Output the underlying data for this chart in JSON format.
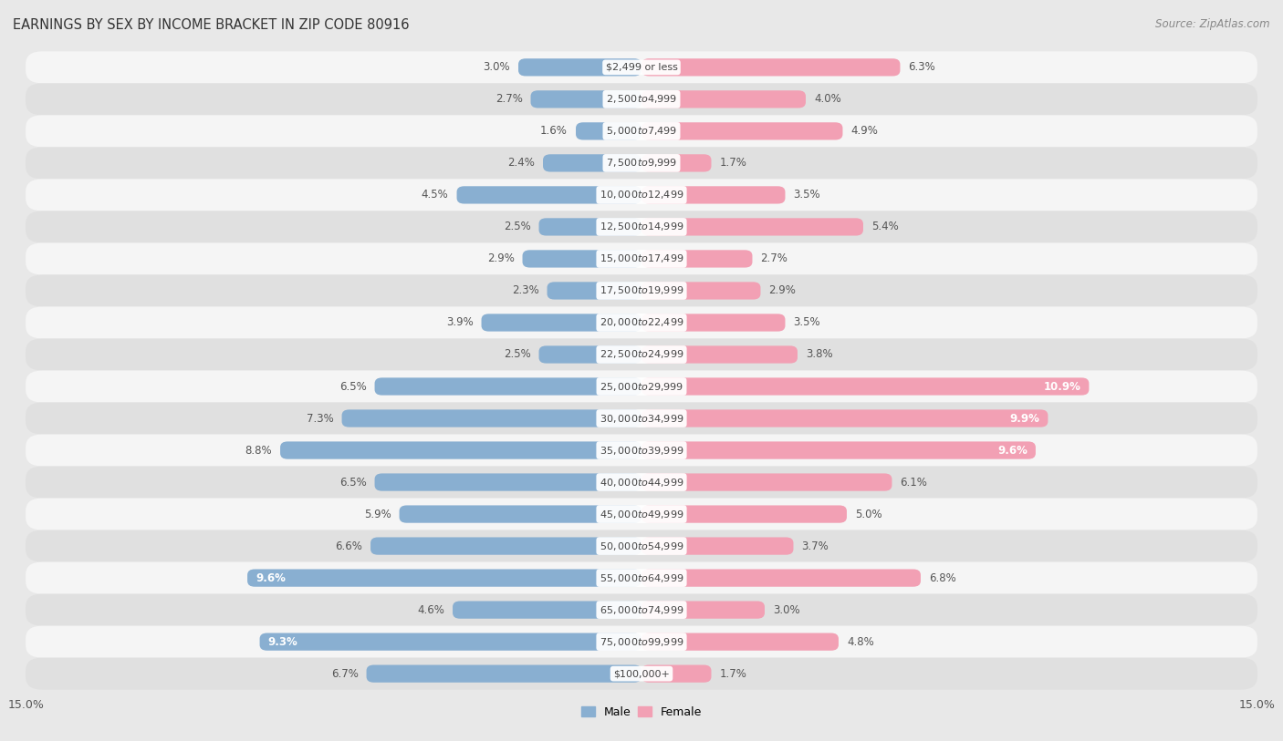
{
  "title": "EARNINGS BY SEX BY INCOME BRACKET IN ZIP CODE 80916",
  "source": "Source: ZipAtlas.com",
  "categories": [
    "$2,499 or less",
    "$2,500 to $4,999",
    "$5,000 to $7,499",
    "$7,500 to $9,999",
    "$10,000 to $12,499",
    "$12,500 to $14,999",
    "$15,000 to $17,499",
    "$17,500 to $19,999",
    "$20,000 to $22,499",
    "$22,500 to $24,999",
    "$25,000 to $29,999",
    "$30,000 to $34,999",
    "$35,000 to $39,999",
    "$40,000 to $44,999",
    "$45,000 to $49,999",
    "$50,000 to $54,999",
    "$55,000 to $64,999",
    "$65,000 to $74,999",
    "$75,000 to $99,999",
    "$100,000+"
  ],
  "male_values": [
    3.0,
    2.7,
    1.6,
    2.4,
    4.5,
    2.5,
    2.9,
    2.3,
    3.9,
    2.5,
    6.5,
    7.3,
    8.8,
    6.5,
    5.9,
    6.6,
    9.6,
    4.6,
    9.3,
    6.7
  ],
  "female_values": [
    6.3,
    4.0,
    4.9,
    1.7,
    3.5,
    5.4,
    2.7,
    2.9,
    3.5,
    3.8,
    10.9,
    9.9,
    9.6,
    6.1,
    5.0,
    3.7,
    6.8,
    3.0,
    4.8,
    1.7
  ],
  "male_color": "#89afd1",
  "female_color": "#f2a0b4",
  "male_label": "Male",
  "female_label": "Female",
  "xlim": 15.0,
  "background_color": "#e8e8e8",
  "row_color_odd": "#f5f5f5",
  "row_color_even": "#e0e0e0",
  "title_fontsize": 10.5,
  "source_fontsize": 8.5,
  "axis_label_fontsize": 9,
  "value_fontsize": 8.5,
  "category_fontsize": 8.0,
  "label_inside_threshold": 9.0
}
